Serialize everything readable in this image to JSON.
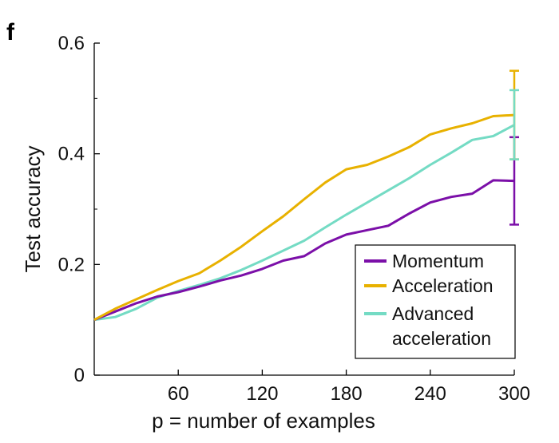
{
  "panel_label": "f",
  "colors": {
    "momentum": "#7B0FA8",
    "acceleration": "#E8B100",
    "advanced": "#74DBC4",
    "axis": "#000000"
  },
  "chart_data": {
    "type": "line",
    "xlabel": "p = number of examples",
    "ylabel": "Test accuracy",
    "xlim": [
      0,
      300
    ],
    "ylim": [
      0,
      0.6
    ],
    "x_ticks": [
      60,
      120,
      180,
      240,
      300
    ],
    "x_tick_labels": [
      "60",
      "120",
      "180",
      "240",
      "300"
    ],
    "y_ticks": [
      0,
      0.2,
      0.4,
      0.6
    ],
    "y_tick_labels": [
      "0",
      "0.2",
      "0.4",
      "0.6"
    ],
    "y_minor_ticks": [
      0.1,
      0.3,
      0.5
    ],
    "legend_position": "bottom-right",
    "series": [
      {
        "name": "Momentum",
        "color_key": "momentum",
        "x": [
          0,
          15,
          30,
          45,
          60,
          75,
          90,
          105,
          120,
          135,
          150,
          165,
          180,
          195,
          210,
          225,
          240,
          255,
          270,
          285,
          300
        ],
        "y": [
          0.1,
          0.115,
          0.13,
          0.142,
          0.15,
          0.16,
          0.171,
          0.18,
          0.192,
          0.207,
          0.215,
          0.238,
          0.254,
          0.262,
          0.27,
          0.292,
          0.312,
          0.322,
          0.328,
          0.352,
          0.351
        ],
        "error_at_end": [
          0.272,
          0.43
        ]
      },
      {
        "name": "Acceleration",
        "color_key": "acceleration",
        "x": [
          0,
          15,
          30,
          45,
          60,
          75,
          90,
          105,
          120,
          135,
          150,
          165,
          180,
          195,
          210,
          225,
          240,
          255,
          270,
          285,
          300
        ],
        "y": [
          0.1,
          0.12,
          0.137,
          0.154,
          0.17,
          0.184,
          0.207,
          0.232,
          0.26,
          0.287,
          0.318,
          0.348,
          0.372,
          0.38,
          0.395,
          0.412,
          0.435,
          0.446,
          0.455,
          0.468,
          0.47
        ],
        "error_at_end": [
          0.39,
          0.55
        ]
      },
      {
        "name": "Advanced acceleration",
        "legend_lines": [
          "Advanced",
          "acceleration"
        ],
        "color_key": "advanced",
        "x": [
          0,
          15,
          30,
          45,
          60,
          75,
          90,
          105,
          120,
          135,
          150,
          165,
          180,
          195,
          210,
          225,
          240,
          255,
          270,
          285,
          300
        ],
        "y": [
          0.1,
          0.105,
          0.12,
          0.14,
          0.152,
          0.163,
          0.175,
          0.19,
          0.207,
          0.225,
          0.243,
          0.267,
          0.29,
          0.312,
          0.334,
          0.356,
          0.38,
          0.402,
          0.425,
          0.432,
          0.452
        ],
        "error_at_end": [
          0.39,
          0.515
        ]
      }
    ]
  }
}
